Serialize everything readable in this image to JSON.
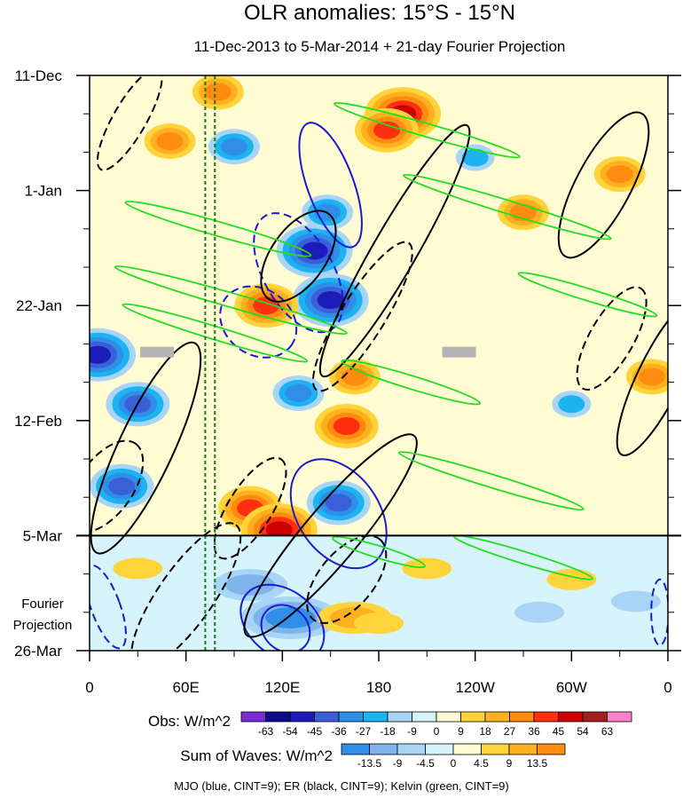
{
  "chart_data": {
    "type": "heatmap",
    "title": "OLR anomalies: 15°S - 15°N",
    "subtitle": "11-Dec-2013 to 5-Mar-2014 + 21-day Fourier Projection",
    "x_tick_labels": [
      "0",
      "60E",
      "120E",
      "180",
      "120W",
      "60W",
      "0"
    ],
    "x_tick_lons": [
      0,
      60,
      120,
      180,
      240,
      300,
      360
    ],
    "y_tick_labels": [
      "11-Dec",
      "1-Jan",
      "22-Jan",
      "12-Feb",
      "5-Mar",
      "26-Mar"
    ],
    "y_tick_days": [
      0,
      21,
      42,
      63,
      84,
      105
    ],
    "projection_start_day": 84,
    "projection_label_line1": "Fourier",
    "projection_label_line2": "Projection",
    "reference_lines_lon": [
      72,
      78
    ],
    "obs_colorbar": {
      "label": "Obs: W/m^2",
      "levels": [
        "-63",
        "-54",
        "-45",
        "-36",
        "-27",
        "-18",
        "-9",
        "0",
        "9",
        "18",
        "27",
        "36",
        "45",
        "54",
        "63"
      ],
      "colors": [
        "#7b2bd6",
        "#0b0b8c",
        "#1c1cb8",
        "#3a5fd8",
        "#2f8fe8",
        "#1cb4f0",
        "#a8d4f5",
        "#d8f4fb",
        "#fffbd2",
        "#ffd43b",
        "#ffb020",
        "#ff8c10",
        "#ff3010",
        "#cc0000",
        "#a02020",
        "#ff80c8"
      ]
    },
    "waves_colorbar": {
      "label": "Sum of Waves: W/m^2",
      "levels": [
        "-13.5",
        "-9",
        "-4.5",
        "0",
        "4.5",
        "9",
        "13.5"
      ],
      "colors": [
        "#2f8fe8",
        "#7fb4ea",
        "#a8d4f5",
        "#d8f4fb",
        "#fffbd2",
        "#ffd43b",
        "#ffb020",
        "#ff8c10"
      ]
    },
    "footer_note": "MJO (blue, CINT=9); ER (black, CINT=9); Kelvin (green, CINT=9)",
    "grey_markers": [
      {
        "lon": 42,
        "day": 50.5
      },
      {
        "lon": 230,
        "day": 50.5
      }
    ],
    "obs_anomaly_blobs": [
      {
        "lon": 140,
        "day": 32,
        "value": -50
      },
      {
        "lon": 150,
        "day": 41,
        "value": -45
      },
      {
        "lon": 148,
        "day": 25,
        "value": -30
      },
      {
        "lon": 30,
        "day": 60,
        "value": -36
      },
      {
        "lon": 20,
        "day": 75,
        "value": -40
      },
      {
        "lon": 90,
        "day": 13,
        "value": -30
      },
      {
        "lon": 155,
        "day": 78,
        "value": -40
      },
      {
        "lon": 5,
        "day": 51,
        "value": -45
      },
      {
        "lon": 110,
        "day": 42,
        "value": 40
      },
      {
        "lon": 100,
        "day": 79,
        "value": 38
      },
      {
        "lon": 118,
        "day": 83,
        "value": 45
      },
      {
        "lon": 160,
        "day": 64,
        "value": 36
      },
      {
        "lon": 195,
        "day": 7,
        "value": 45
      },
      {
        "lon": 185,
        "day": 10,
        "value": 36
      },
      {
        "lon": 50,
        "day": 12,
        "value": 27
      },
      {
        "lon": 80,
        "day": 3,
        "value": 27
      },
      {
        "lon": 165,
        "day": 55,
        "value": 27
      },
      {
        "lon": 270,
        "day": 25,
        "value": 27
      },
      {
        "lon": 330,
        "day": 18,
        "value": 27
      },
      {
        "lon": 350,
        "day": 55,
        "value": 27
      },
      {
        "lon": 130,
        "day": 58,
        "value": -27
      },
      {
        "lon": 300,
        "day": 60,
        "value": -18
      },
      {
        "lon": 240,
        "day": 15,
        "value": -18
      }
    ],
    "projection_blobs": [
      {
        "lon": 125,
        "day": 99,
        "value": -13.5
      },
      {
        "lon": 100,
        "day": 93,
        "value": -9
      },
      {
        "lon": 165,
        "day": 99,
        "value": 9
      },
      {
        "lon": 180,
        "day": 100,
        "value": 4.5
      },
      {
        "lon": 30,
        "day": 90,
        "value": 4.5
      },
      {
        "lon": 210,
        "day": 90,
        "value": 4.5
      },
      {
        "lon": 300,
        "day": 92,
        "value": 4.5
      },
      {
        "lon": 280,
        "day": 98,
        "value": -4.5
      },
      {
        "lon": 340,
        "day": 96,
        "value": -4.5
      }
    ],
    "mjo_contours": [
      {
        "lon": 130,
        "day": 36,
        "rlon": 12,
        "rday": 12,
        "angle": -30,
        "dash": true
      },
      {
        "lon": 150,
        "day": 20,
        "rlon": 8,
        "rday": 12,
        "angle": -20,
        "dash": false
      },
      {
        "lon": 155,
        "day": 80,
        "rlon": 14,
        "rday": 11,
        "angle": -35,
        "dash": false
      },
      {
        "lon": 120,
        "day": 100,
        "rlon": 16,
        "rday": 6,
        "angle": 38,
        "dash": false
      },
      {
        "lon": 122,
        "day": 101,
        "rlon": 9,
        "rday": 4,
        "angle": 42,
        "dash": false
      },
      {
        "lon": 10,
        "day": 97,
        "rlon": 5,
        "rday": 8,
        "angle": -20,
        "dash": true
      },
      {
        "lon": 105,
        "day": 45,
        "rlon": 14,
        "rday": 6,
        "angle": 35,
        "dash": true
      },
      {
        "lon": 355,
        "day": 98,
        "rlon": 3,
        "rday": 6,
        "angle": 0,
        "dash": true
      }
    ],
    "er_contours": [
      {
        "lon": 130,
        "day": 33,
        "rlon": 18,
        "rday": 5,
        "angle": -55,
        "dash": false
      },
      {
        "lon": 190,
        "day": 32,
        "rlon": 50,
        "rday": 4,
        "angle": -60,
        "dash": false
      },
      {
        "lon": 35,
        "day": 68,
        "rlon": 40,
        "rday": 5,
        "angle": -65,
        "dash": false
      },
      {
        "lon": 150,
        "day": 84,
        "rlon": 45,
        "rday": 5,
        "angle": -50,
        "dash": false
      },
      {
        "lon": 320,
        "day": 20,
        "rlon": 28,
        "rday": 5,
        "angle": -62,
        "dash": false
      },
      {
        "lon": 355,
        "day": 55,
        "rlon": 30,
        "rday": 4,
        "angle": -64,
        "dash": false
      },
      {
        "lon": 10,
        "day": 75,
        "rlon": 18,
        "rday": 5,
        "angle": -55,
        "dash": true
      },
      {
        "lon": 100,
        "day": 79,
        "rlon": 20,
        "rday": 4,
        "angle": -58,
        "dash": true
      },
      {
        "lon": 160,
        "day": 92,
        "rlon": 18,
        "rday": 5,
        "angle": -50,
        "dash": true
      },
      {
        "lon": 325,
        "day": 48,
        "rlon": 20,
        "rday": 4,
        "angle": -60,
        "dash": true
      },
      {
        "lon": 170,
        "day": 44,
        "rlon": 30,
        "rday": 4,
        "angle": -58,
        "dash": true
      },
      {
        "lon": 60,
        "day": 95,
        "rlon": 30,
        "rday": 5,
        "angle": -55,
        "dash": true
      },
      {
        "lon": 25,
        "day": 8,
        "rlon": 20,
        "rday": 3,
        "angle": -60,
        "dash": true
      }
    ],
    "kelvin_contours": [
      {
        "lon": 80,
        "day": 28,
        "rlon": 40,
        "rday": 1.3,
        "angle": -10
      },
      {
        "lon": 210,
        "day": 10,
        "rlon": 40,
        "rday": 1.2,
        "angle": -10
      },
      {
        "lon": 260,
        "day": 24,
        "rlon": 45,
        "rday": 1.2,
        "angle": -9
      },
      {
        "lon": 88,
        "day": 41,
        "rlon": 50,
        "rday": 1.3,
        "angle": -10
      },
      {
        "lon": 78,
        "day": 47,
        "rlon": 40,
        "rday": 1.2,
        "angle": -9
      },
      {
        "lon": 200,
        "day": 56,
        "rlon": 30,
        "rday": 1.2,
        "angle": -9
      },
      {
        "lon": 250,
        "day": 74,
        "rlon": 40,
        "rday": 1.2,
        "angle": -9
      },
      {
        "lon": 310,
        "day": 40,
        "rlon": 30,
        "rday": 1.1,
        "angle": -9
      },
      {
        "lon": 270,
        "day": 88,
        "rlon": 30,
        "rday": 1.1,
        "angle": -9
      },
      {
        "lon": 180,
        "day": 87,
        "rlon": 20,
        "rday": 1.1,
        "angle": -9
      }
    ]
  }
}
